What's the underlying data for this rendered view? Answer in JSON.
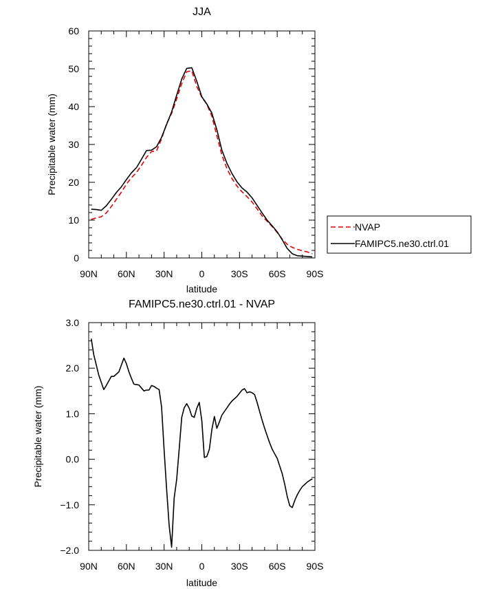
{
  "chart_data": [
    {
      "type": "line",
      "title": "JJA",
      "xlabel": "latitude",
      "ylabel": "Precipitable water (mm)",
      "xlim": [
        90,
        -90
      ],
      "ylim": [
        0,
        60
      ],
      "x_ticks": [
        90,
        60,
        30,
        0,
        -30,
        -60,
        -90
      ],
      "x_tick_labels": [
        "90N",
        "60N",
        "30N",
        "0",
        "30S",
        "60S",
        "90S"
      ],
      "y_ticks": [
        0,
        10,
        20,
        30,
        40,
        50,
        60
      ],
      "y_tick_labels": [
        "0",
        "10",
        "20",
        "30",
        "40",
        "50",
        "60"
      ],
      "legend": {
        "placement": "right",
        "entries": [
          "NVAP",
          "FAMIPC5.ne30.ctrl.01"
        ]
      },
      "series": [
        {
          "name": "NVAP",
          "color": "#e60000",
          "dash": true,
          "x": [
            88,
            84,
            80,
            76,
            72,
            68,
            64,
            60,
            56,
            52,
            48,
            44,
            40,
            36,
            32,
            28,
            24,
            20,
            16,
            12,
            8,
            4,
            0,
            -4,
            -8,
            -12,
            -16,
            -20,
            -24,
            -28,
            -32,
            -36,
            -40,
            -44,
            -48,
            -52,
            -56,
            -60,
            -64,
            -68,
            -72,
            -76,
            -80,
            -84,
            -88
          ],
          "values": [
            10.2,
            10.6,
            10.9,
            11.9,
            13.6,
            15.5,
            17.4,
            19.5,
            21.2,
            22.6,
            24.5,
            26.6,
            28.1,
            28.3,
            31.5,
            35.5,
            38.2,
            42.0,
            46.1,
            49.2,
            49.5,
            45.3,
            42.5,
            40.6,
            37.5,
            32.3,
            27.2,
            23.6,
            21.0,
            19.0,
            17.5,
            16.2,
            14.8,
            13.0,
            11.1,
            9.7,
            8.3,
            6.7,
            5.0,
            3.6,
            2.8,
            2.3,
            1.9,
            1.6,
            1.1
          ]
        },
        {
          "name": "FAMIPC5.ne30.ctrl.01",
          "color": "#000000",
          "dash": false,
          "x": [
            88,
            84,
            80,
            76,
            72,
            68,
            64,
            60,
            56,
            52,
            48,
            44,
            40,
            36,
            32,
            28,
            24,
            20,
            16,
            12,
            8,
            4,
            0,
            -4,
            -8,
            -12,
            -16,
            -20,
            -24,
            -28,
            -32,
            -36,
            -40,
            -44,
            -48,
            -52,
            -56,
            -60,
            -64,
            -68,
            -72,
            -76,
            -80,
            -84,
            -88
          ],
          "values": [
            12.9,
            12.8,
            12.6,
            13.8,
            15.5,
            17.3,
            18.8,
            20.7,
            22.5,
            23.9,
            26.1,
            28.4,
            28.5,
            29.4,
            31.9,
            35.3,
            38.6,
            43.0,
            47.3,
            50.1,
            50.3,
            46.7,
            42.6,
            40.7,
            38.3,
            33.9,
            28.5,
            25.0,
            22.3,
            20.1,
            18.5,
            17.4,
            15.9,
            13.9,
            11.9,
            10.0,
            8.5,
            6.9,
            4.8,
            2.5,
            1.1,
            0.6,
            0.5,
            0.4,
            0.3
          ]
        }
      ]
    },
    {
      "type": "line",
      "title": "FAMIPC5.ne30.ctrl.01 - NVAP",
      "xlabel": "latitude",
      "ylabel": "Precipitable water (mm)",
      "xlim": [
        90,
        -90
      ],
      "ylim": [
        -2.0,
        3.0
      ],
      "x_ticks": [
        90,
        60,
        30,
        0,
        -30,
        -60,
        -90
      ],
      "x_tick_labels": [
        "90N",
        "60N",
        "30N",
        "0",
        "30S",
        "60S",
        "90S"
      ],
      "y_ticks": [
        -2.0,
        -1.0,
        0.0,
        1.0,
        2.0,
        3.0
      ],
      "y_tick_labels": [
        "−2.0",
        "−1.0",
        "0.0",
        "1.0",
        "2.0",
        "3.0"
      ],
      "series": [
        {
          "color": "#000000",
          "dash": false,
          "x": [
            88,
            86,
            82,
            78,
            76,
            74,
            72,
            70,
            66,
            62,
            60,
            58,
            56,
            54,
            50,
            46,
            44,
            42,
            40,
            38,
            36,
            34,
            32,
            30,
            28,
            26,
            24,
            22,
            20,
            18,
            16,
            14,
            12,
            10,
            8,
            6,
            4,
            2,
            0,
            -2,
            -4,
            -6,
            -8,
            -10,
            -12,
            -14,
            -16,
            -18,
            -20,
            -22,
            -24,
            -26,
            -28,
            -30,
            -32,
            -34,
            -36,
            -38,
            -40,
            -42,
            -44,
            -46,
            -48,
            -50,
            -52,
            -54,
            -56,
            -58,
            -60,
            -62,
            -64,
            -66,
            -68,
            -70,
            -72,
            -74,
            -76,
            -78,
            -80,
            -82,
            -84,
            -86,
            -88
          ],
          "values": [
            2.65,
            2.3,
            1.85,
            1.53,
            1.62,
            1.72,
            1.82,
            1.82,
            1.92,
            2.22,
            2.1,
            1.92,
            1.78,
            1.65,
            1.63,
            1.5,
            1.52,
            1.52,
            1.62,
            1.6,
            1.56,
            1.53,
            1.15,
            0.2,
            -0.65,
            -1.45,
            -1.93,
            -0.85,
            -0.45,
            0.22,
            0.92,
            1.13,
            1.22,
            1.12,
            0.95,
            0.92,
            1.12,
            1.25,
            0.85,
            0.04,
            0.06,
            0.22,
            0.65,
            0.94,
            0.68,
            0.82,
            0.97,
            1.05,
            1.13,
            1.21,
            1.28,
            1.33,
            1.38,
            1.45,
            1.52,
            1.55,
            1.46,
            1.48,
            1.46,
            1.42,
            1.25,
            1.05,
            0.86,
            0.68,
            0.52,
            0.36,
            0.22,
            0.12,
            0.02,
            -0.15,
            -0.32,
            -0.55,
            -0.82,
            -1.02,
            -1.06,
            -0.9,
            -0.78,
            -0.68,
            -0.6,
            -0.55,
            -0.5,
            -0.46,
            -0.43
          ]
        }
      ]
    }
  ]
}
